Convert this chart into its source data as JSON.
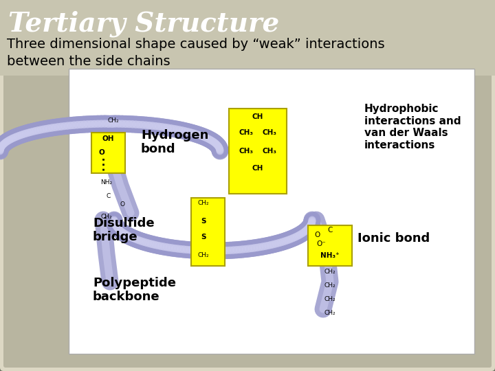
{
  "title": "Tertiary Structure",
  "subtitle": "Three dimensional shape caused by “weak” interactions\nbetween the side chains",
  "background_color": "#6b7060",
  "slide_bg": "#6b7060",
  "paper_bg": "#f5f0e8",
  "white_box_bg": "#ffffff",
  "title_color": "#ffffff",
  "subtitle_color": "#000000",
  "title_fontsize": 28,
  "subtitle_fontsize": 14,
  "image_embedded": true,
  "labels": {
    "hydrogen_bond": "Hydrogen\nbond",
    "hydrophobic": "Hydrophobic\ninteractions and\nvan der Waals\ninteractions",
    "disulfide": "Disulfide\nbridge",
    "ionic": "Ionic bond",
    "polypeptide": "Polypeptide\nbackbone"
  }
}
